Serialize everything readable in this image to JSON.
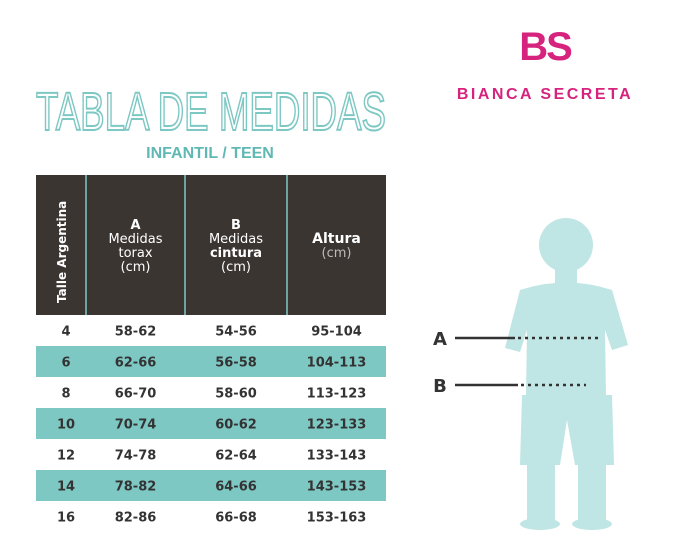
{
  "brand": {
    "logo": "BS",
    "name": "BIANCA SECRETA"
  },
  "title": "TABLA DE MEDIDAS",
  "subtitle": "INFANTIL / TEEN",
  "table": {
    "header": [
      [
        "Talle Argentina"
      ],
      [
        "A",
        "Medidas",
        "torax",
        "(cm)"
      ],
      [
        "B",
        "Medidas",
        "cintura",
        "(cm)"
      ],
      [
        "Altura",
        "(cm)"
      ]
    ],
    "rows": [
      [
        "4",
        "58-62",
        "54-56",
        "95-104"
      ],
      [
        "6",
        "62-66",
        "56-58",
        "104-113"
      ],
      [
        "8",
        "66-70",
        "58-60",
        "113-123"
      ],
      [
        "10",
        "70-74",
        "60-62",
        "123-133"
      ],
      [
        "12",
        "74-78",
        "62-64",
        "133-143"
      ],
      [
        "14",
        "78-82",
        "64-66",
        "143-153"
      ],
      [
        "16",
        "82-86",
        "66-68",
        "153-163"
      ]
    ]
  },
  "figure": {
    "labels": [
      "A",
      "B"
    ]
  }
}
